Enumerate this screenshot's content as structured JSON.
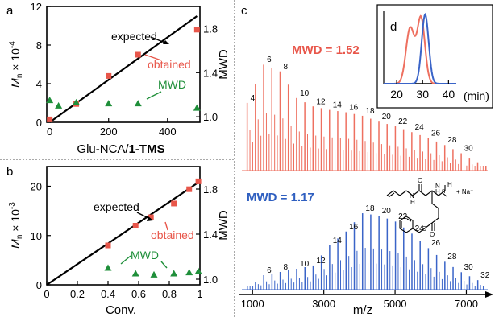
{
  "panels": {
    "a": "a",
    "b": "b",
    "c": "c",
    "d": "d"
  },
  "chart_data": [
    {
      "id": "a",
      "type": "scatter",
      "xlabel": "Glu-NCA/1-TMS",
      "xlabel_plain": "Glu-NCA/",
      "xlabel_bold": "1-TMS",
      "ylabel_left": "Mn × 10⁻⁴",
      "ylabel_right": "MWD",
      "xlim": [
        -10,
        510
      ],
      "ylim_left": [
        0,
        12
      ],
      "ylim_right": [
        0.95,
        2.0
      ],
      "x_ticks": [
        "0",
        "200",
        "400"
      ],
      "y_ticks_left": [
        "0",
        "4",
        "8",
        "12"
      ],
      "y_ticks_right": [
        "1.0",
        "1.4",
        "1.8"
      ],
      "annotations": {
        "expected": "expected",
        "obtained": "obtained",
        "mwd": "MWD"
      },
      "expected_line": {
        "x": [
          0,
          500
        ],
        "y": [
          0,
          11
        ]
      },
      "obtained": {
        "x": [
          0,
          90,
          200,
          300,
          500
        ],
        "y": [
          0.3,
          1.9,
          4.8,
          7.0,
          9.6
        ]
      },
      "mwd": {
        "x": [
          0,
          30,
          90,
          200,
          300,
          500
        ],
        "y": [
          1.15,
          1.1,
          1.13,
          1.12,
          1.12,
          1.08
        ]
      }
    },
    {
      "id": "b",
      "type": "scatter",
      "xlabel": "Conv.",
      "ylabel_left": "Mn × 10⁻³",
      "ylabel_right": "MWD",
      "xlim": [
        0,
        1.0
      ],
      "ylim_left": [
        0,
        24
      ],
      "ylim_right": [
        0.95,
        2.0
      ],
      "x_ticks": [
        "0",
        "0.2",
        "0.4",
        "0.6",
        "0.8",
        "1"
      ],
      "y_ticks_left": [
        "0",
        "10",
        "20"
      ],
      "y_ticks_right": [
        "1.0",
        "1.4",
        "1.8"
      ],
      "annotations": {
        "expected": "expected",
        "obtained": "obtained",
        "mwd": "MWD"
      },
      "expected_line": {
        "x": [
          0,
          1.0
        ],
        "y": [
          0,
          21
        ]
      },
      "obtained": {
        "x": [
          0.4,
          0.58,
          0.68,
          0.83,
          0.93,
          0.99
        ],
        "y": [
          8.0,
          12.0,
          13.7,
          16.5,
          19.4,
          21.0
        ]
      },
      "mwd": {
        "x": [
          0.4,
          0.58,
          0.7,
          0.83,
          0.93,
          0.99
        ],
        "y": [
          1.1,
          1.05,
          1.04,
          1.05,
          1.06,
          1.07
        ]
      }
    },
    {
      "id": "c",
      "type": "line",
      "xlabel": "m/z",
      "xlim": [
        700,
        7600
      ],
      "x_ticks": [
        "1000",
        "3000",
        "5000",
        "7000"
      ],
      "series": [
        {
          "name": "MWD = 1.52",
          "color": "#ee7060",
          "peak_labels": {
            "labels": [
              "4",
              "6",
              "8",
              "10",
              "12",
              "14",
              "16",
              "18",
              "20",
              "22",
              "24",
              "26",
              "28",
              "30"
            ],
            "mz": [
              850,
              1315,
              1775,
              2240,
              2700,
              3160,
              3620,
              4080,
              4540,
              5000,
              5465,
              5925,
              6385,
              6845
            ],
            "rel_intensity": [
              0.58,
              0.91,
              0.85,
              0.62,
              0.55,
              0.52,
              0.5,
              0.47,
              0.42,
              0.38,
              0.33,
              0.28,
              0.22,
              0.15
            ]
          }
        },
        {
          "name": "MWD = 1.17",
          "color": "#3a64c8",
          "peak_labels": {
            "labels": [
              "6",
              "8",
              "10",
              "12",
              "14",
              "16",
              "18",
              "20",
              "22",
              "24",
              "26",
              "28",
              "30",
              "32"
            ],
            "mz": [
              1315,
              1775,
              2240,
              2700,
              3160,
              3620,
              4080,
              4540,
              5000,
              5465,
              5925,
              6385,
              6845,
              7310
            ],
            "rel_intensity": [
              0.18,
              0.22,
              0.26,
              0.3,
              0.55,
              0.72,
              0.95,
              0.92,
              0.85,
              0.7,
              0.52,
              0.35,
              0.22,
              0.12
            ]
          }
        }
      ],
      "structure_label": "+ Na⁺"
    },
    {
      "id": "d",
      "type": "line",
      "xlabel": "(min)",
      "xlim": [
        15,
        43
      ],
      "x_ticks": [
        "20",
        "30",
        "40"
      ],
      "series": [
        {
          "name": "MWD = 1.52",
          "color": "#ee7060"
        },
        {
          "name": "MWD = 1.17",
          "color": "#3a64c8"
        }
      ]
    }
  ]
}
